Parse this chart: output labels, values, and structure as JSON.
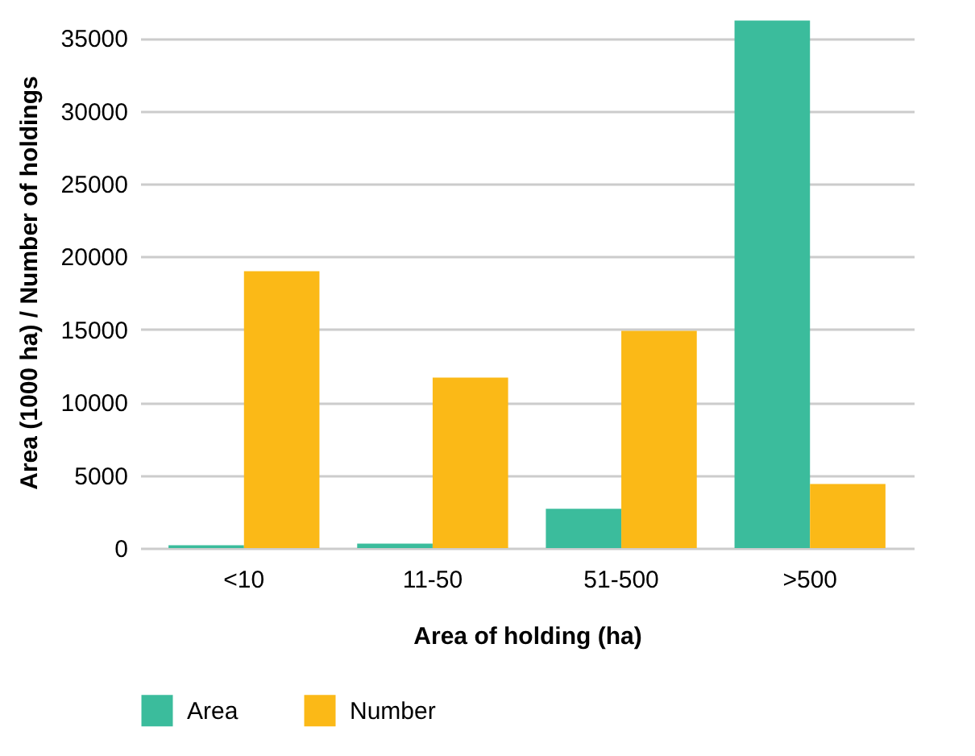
{
  "chart_data": {
    "type": "bar",
    "xlabel": "Area of holding (ha)",
    "ylabel": "Area (1000 ha) / Number of holdings",
    "categories": [
      "<10",
      "11-50",
      "51-500",
      ">500"
    ],
    "series": [
      {
        "name": "Area",
        "color": "#3bbc9c",
        "values": [
          200,
          300,
          2700,
          36200
        ]
      },
      {
        "name": "Number",
        "color": "#fbb917",
        "values": [
          19000,
          11700,
          14900,
          4400
        ]
      }
    ],
    "ylim": [
      0,
      36500
    ],
    "yticks": [
      0,
      5000,
      10000,
      15000,
      20000,
      25000,
      30000,
      35000
    ],
    "grid": "y",
    "legend": "bottom left"
  }
}
